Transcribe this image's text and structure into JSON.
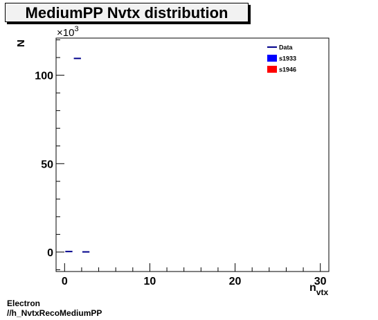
{
  "chart_data": {
    "type": "bar",
    "title": "MediumPP Nvtx distribution",
    "xlabel": "n",
    "xlabel_sub": "vtx",
    "ylabel": "N",
    "y_multiplier_label": "×10",
    "y_multiplier_exp": "3",
    "xlim": [
      -1,
      31
    ],
    "ylim": [
      -11,
      121
    ],
    "x_major_ticks": [
      0,
      10,
      20,
      30
    ],
    "x_tick_labels": [
      "0",
      "10",
      "20",
      "30"
    ],
    "y_major_ticks": [
      0,
      50,
      100
    ],
    "y_tick_labels": [
      "0",
      "50",
      "100"
    ],
    "grid": false,
    "legend_position": "top-right",
    "legend": [
      {
        "name": "Data",
        "style": "line",
        "color": "#00008b"
      },
      {
        "name": "s1933",
        "style": "fill",
        "color": "#0000ff"
      },
      {
        "name": "s1946",
        "style": "fill",
        "color": "#ff0000"
      }
    ],
    "series": [
      {
        "name": "Data",
        "color": "#00008b",
        "bins": [
          {
            "x0": 0,
            "x1": 1,
            "y": 0.3
          },
          {
            "x0": 1,
            "x1": 2,
            "y": 109.5
          },
          {
            "x0": 2,
            "x1": 3,
            "y": 0.1
          }
        ]
      }
    ]
  },
  "footer": {
    "line1": "Electron",
    "line2": "//h_NvtxRecoMediumPP"
  }
}
